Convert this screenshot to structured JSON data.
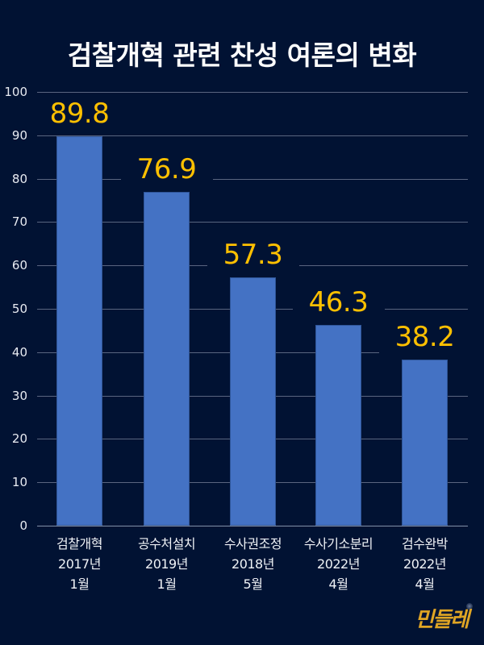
{
  "title": "검찰개혁 관련 찬성 여론의 변화",
  "colors": {
    "background": "#011233",
    "bar": "#4472c4",
    "value_label": "#ffc000",
    "text": "#ffffff",
    "grid": "#5a6580"
  },
  "y_axis": {
    "ticks": [
      "100",
      "90",
      "80",
      "70",
      "60",
      "50",
      "40",
      "30",
      "20",
      "10",
      "0"
    ]
  },
  "categories": [
    {
      "line1": "검찰개혁",
      "line2": "2017년",
      "line3": "1월",
      "value": "89.8"
    },
    {
      "line1": "공수처설치",
      "line2": "2019년",
      "line3": "1월",
      "value": "76.9"
    },
    {
      "line1": "수사권조정",
      "line2": "2018년",
      "line3": "5월",
      "value": "57.3"
    },
    {
      "line1": "수사기소분리",
      "line2": "2022년",
      "line3": "4월",
      "value": "46.3"
    },
    {
      "line1": "검수완박",
      "line2": "2022년",
      "line3": "4월",
      "value": "38.2"
    }
  ],
  "logo": "민들레",
  "chart_data": {
    "type": "bar",
    "title": "검찰개혁 관련 찬성 여론의 변화",
    "categories": [
      "검찰개혁 2017년 1월",
      "공수처설치 2019년 1월",
      "수사권조정 2018년 5월",
      "수사기소분리 2022년 4월",
      "검수완박 2022년 4월"
    ],
    "values": [
      89.8,
      76.9,
      57.3,
      46.3,
      38.2
    ],
    "xlabel": "",
    "ylabel": "",
    "ylim": [
      0,
      100
    ],
    "yticks": [
      0,
      10,
      20,
      30,
      40,
      50,
      60,
      70,
      80,
      90,
      100
    ],
    "grid": true,
    "legend": null,
    "data_labels": true
  }
}
